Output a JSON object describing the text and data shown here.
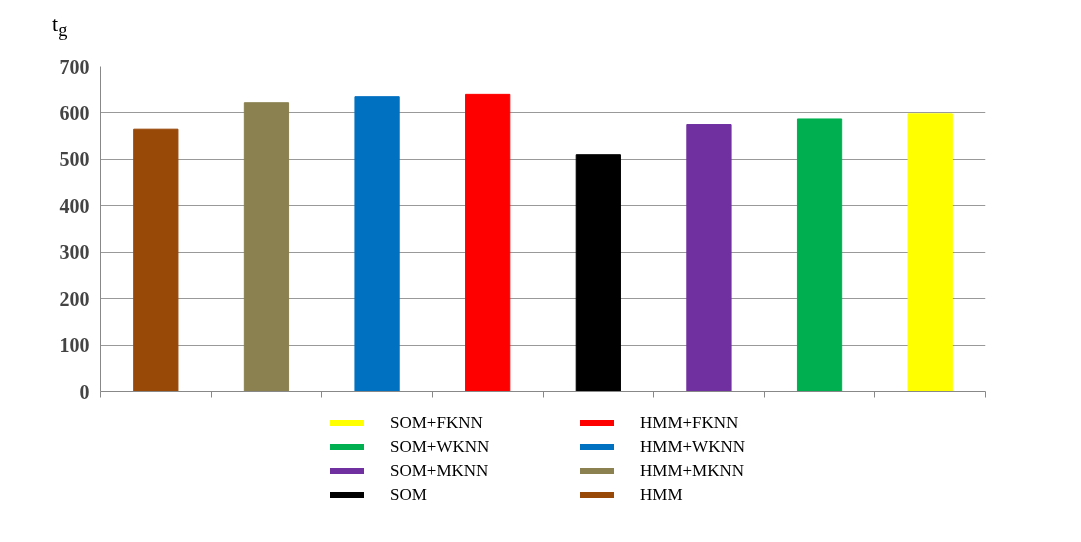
{
  "chart_data": {
    "type": "bar",
    "ylabel": "t$_{g}$",
    "categories": [
      null,
      null,
      null,
      null,
      null,
      null,
      null,
      null
    ],
    "series": [
      {
        "name": "HMM",
        "color": "#984807",
        "values": [
          565,
          null,
          null,
          null,
          null,
          null,
          null,
          null
        ]
      },
      {
        "name": "HMM+MKNN",
        "color": "#8b8150",
        "values": [
          null,
          622,
          null,
          null,
          null,
          null,
          null,
          null
        ]
      },
      {
        "name": "HMM+WKNN",
        "color": "#0070c0",
        "values": [
          null,
          null,
          635,
          null,
          null,
          null,
          null,
          null
        ]
      },
      {
        "name": "HMM+FKNN",
        "color": "#ff0000",
        "values": [
          null,
          null,
          null,
          640,
          null,
          null,
          null,
          null
        ]
      },
      {
        "name": "SOM",
        "color": "#000000",
        "values": [
          null,
          null,
          null,
          null,
          510,
          null,
          null,
          null
        ]
      },
      {
        "name": "SOM+MKNN",
        "color": "#7030a0",
        "values": [
          null,
          null,
          null,
          null,
          null,
          575,
          null,
          null
        ]
      },
      {
        "name": "SOM+WKNN",
        "color": "#00b050",
        "values": [
          null,
          null,
          null,
          null,
          null,
          null,
          587,
          null
        ]
      },
      {
        "name": "SOM+FKNN",
        "color": "#ffff00",
        "values": [
          null,
          null,
          null,
          null,
          null,
          null,
          null,
          598
        ]
      }
    ],
    "ylim": [
      0,
      700
    ],
    "yticks": [
      0,
      100,
      200,
      300,
      400,
      500,
      600,
      700
    ],
    "grid": "y",
    "legend": "bottom"
  }
}
